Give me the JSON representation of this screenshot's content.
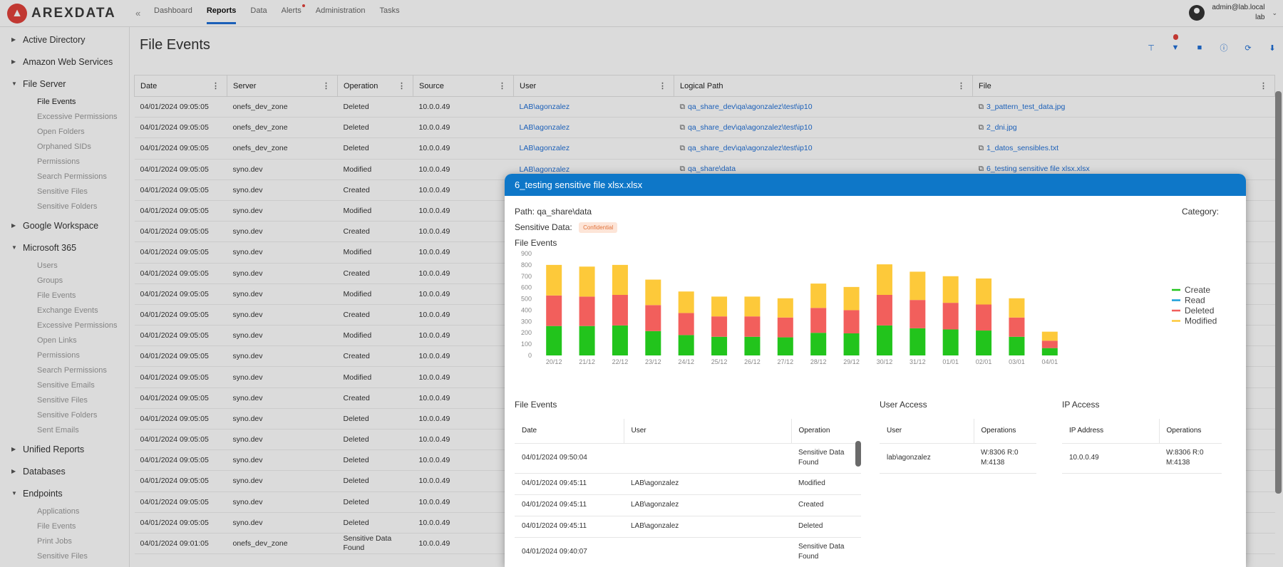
{
  "app": {
    "brand": "AREXDATA",
    "collapse": "«"
  },
  "nav": [
    {
      "label": "Dashboard"
    },
    {
      "label": "Reports"
    },
    {
      "label": "Data"
    },
    {
      "label": "Alerts"
    },
    {
      "label": "Administration"
    },
    {
      "label": "Tasks"
    }
  ],
  "user": {
    "name": "admin@lab.local",
    "domain": "lab"
  },
  "sidebar": {
    "groups": [
      {
        "label": "Active Directory",
        "open": false,
        "items": []
      },
      {
        "label": "Amazon Web Services",
        "open": false,
        "items": []
      },
      {
        "label": "File Server",
        "open": true,
        "items": [
          "File Events",
          "Excessive Permissions",
          "Open Folders",
          "Orphaned SIDs",
          "Permissions",
          "Search Permissions",
          "Sensitive Files",
          "Sensitive Folders"
        ]
      },
      {
        "label": "Google Workspace",
        "open": false,
        "items": []
      },
      {
        "label": "Microsoft 365",
        "open": true,
        "items": [
          "Users",
          "Groups",
          "File Events",
          "Exchange Events",
          "Excessive Permissions",
          "Open Links",
          "Permissions",
          "Search Permissions",
          "Sensitive Emails",
          "Sensitive Files",
          "Sensitive Folders",
          "Sent Emails"
        ]
      },
      {
        "label": "Unified Reports",
        "open": false,
        "items": []
      },
      {
        "label": "Databases",
        "open": false,
        "items": []
      },
      {
        "label": "Endpoints",
        "open": true,
        "items": [
          "Applications",
          "File Events",
          "Print Jobs",
          "Sensitive Files"
        ]
      }
    ]
  },
  "page": {
    "title": "File Events"
  },
  "grid": {
    "columns": [
      "Date",
      "Server",
      "Operation",
      "Source",
      "User",
      "Logical Path",
      "File"
    ],
    "rows": [
      [
        "04/01/2024 09:05:05",
        "onefs_dev_zone",
        "Deleted",
        "10.0.0.49",
        "LAB\\agonzalez",
        "qa_share_dev\\qa\\agonzalez\\test\\ip10",
        "3_pattern_test_data.jpg"
      ],
      [
        "04/01/2024 09:05:05",
        "onefs_dev_zone",
        "Deleted",
        "10.0.0.49",
        "LAB\\agonzalez",
        "qa_share_dev\\qa\\agonzalez\\test\\ip10",
        "2_dni.jpg"
      ],
      [
        "04/01/2024 09:05:05",
        "onefs_dev_zone",
        "Deleted",
        "10.0.0.49",
        "LAB\\agonzalez",
        "qa_share_dev\\qa\\agonzalez\\test\\ip10",
        "1_datos_sensibles.txt"
      ],
      [
        "04/01/2024 09:05:05",
        "syno.dev",
        "Modified",
        "10.0.0.49",
        "LAB\\agonzalez",
        "qa_share\\data",
        "6_testing sensitive file xlsx.xlsx"
      ],
      [
        "04/01/2024 09:05:05",
        "syno.dev",
        "Created",
        "10.0.0.49",
        "",
        "",
        ""
      ],
      [
        "04/01/2024 09:05:05",
        "syno.dev",
        "Modified",
        "10.0.0.49",
        "",
        "",
        ""
      ],
      [
        "04/01/2024 09:05:05",
        "syno.dev",
        "Created",
        "10.0.0.49",
        "",
        "",
        ""
      ],
      [
        "04/01/2024 09:05:05",
        "syno.dev",
        "Modified",
        "10.0.0.49",
        "",
        "",
        ""
      ],
      [
        "04/01/2024 09:05:05",
        "syno.dev",
        "Created",
        "10.0.0.49",
        "",
        "",
        ""
      ],
      [
        "04/01/2024 09:05:05",
        "syno.dev",
        "Modified",
        "10.0.0.49",
        "",
        "",
        ""
      ],
      [
        "04/01/2024 09:05:05",
        "syno.dev",
        "Created",
        "10.0.0.49",
        "",
        "",
        ""
      ],
      [
        "04/01/2024 09:05:05",
        "syno.dev",
        "Modified",
        "10.0.0.49",
        "",
        "",
        ""
      ],
      [
        "04/01/2024 09:05:05",
        "syno.dev",
        "Created",
        "10.0.0.49",
        "",
        "",
        ""
      ],
      [
        "04/01/2024 09:05:05",
        "syno.dev",
        "Modified",
        "10.0.0.49",
        "",
        "",
        ""
      ],
      [
        "04/01/2024 09:05:05",
        "syno.dev",
        "Created",
        "10.0.0.49",
        "",
        "",
        ""
      ],
      [
        "04/01/2024 09:05:05",
        "syno.dev",
        "Deleted",
        "10.0.0.49",
        "",
        "",
        ""
      ],
      [
        "04/01/2024 09:05:05",
        "syno.dev",
        "Deleted",
        "10.0.0.49",
        "",
        "",
        ""
      ],
      [
        "04/01/2024 09:05:05",
        "syno.dev",
        "Deleted",
        "10.0.0.49",
        "",
        "",
        ""
      ],
      [
        "04/01/2024 09:05:05",
        "syno.dev",
        "Deleted",
        "10.0.0.49",
        "",
        "",
        ""
      ],
      [
        "04/01/2024 09:05:05",
        "syno.dev",
        "Deleted",
        "10.0.0.49",
        "",
        "",
        ""
      ],
      [
        "04/01/2024 09:05:05",
        "syno.dev",
        "Deleted",
        "10.0.0.49",
        "",
        "",
        ""
      ],
      [
        "04/01/2024 09:01:05",
        "onefs_dev_zone",
        "Sensitive Data Found",
        "10.0.0.49",
        "",
        "",
        ""
      ]
    ]
  },
  "modal": {
    "title": "6_testing sensitive file xlsx.xlsx",
    "path_label": "Path:",
    "path": "qa_share\\data",
    "sensitive_label": "Sensitive Data:",
    "sensitive_chip": "Confidential",
    "category_label": "Category:",
    "chart_title": "File Events",
    "events_title": "File Events",
    "events_columns": [
      "Date",
      "User",
      "Operation"
    ],
    "events_rows": [
      [
        "04/01/2024 09:50:04",
        "",
        "Sensitive Data Found"
      ],
      [
        "04/01/2024 09:45:11",
        "LAB\\agonzalez",
        "Modified"
      ],
      [
        "04/01/2024 09:45:11",
        "LAB\\agonzalez",
        "Created"
      ],
      [
        "04/01/2024 09:45:11",
        "LAB\\agonzalez",
        "Deleted"
      ],
      [
        "04/01/2024 09:40:07",
        "",
        "Sensitive Data Found"
      ]
    ],
    "user_access_title": "User Access",
    "user_access_columns": [
      "User",
      "Operations"
    ],
    "user_access_rows": [
      [
        "lab\\agonzalez",
        "W:8306 R:0 M:4138"
      ]
    ],
    "ip_access_title": "IP Access",
    "ip_access_columns": [
      "IP Address",
      "Operations"
    ],
    "ip_access_rows": [
      [
        "10.0.0.49",
        "W:8306 R:0 M:4138"
      ]
    ]
  },
  "colors": {
    "accent": "#1f6fd6",
    "header": "#0e77c8",
    "create": "#22c41c",
    "read": "#1a9fd8",
    "deleted": "#f25f5c",
    "modified": "#fdc93a"
  },
  "chart_data": {
    "type": "bar",
    "stacked": true,
    "title": "File Events",
    "categories": [
      "20/12",
      "21/12",
      "22/12",
      "23/12",
      "24/12",
      "25/12",
      "26/12",
      "27/12",
      "28/12",
      "29/12",
      "30/12",
      "31/12",
      "01/01",
      "02/01",
      "03/01",
      "04/01"
    ],
    "series": [
      {
        "name": "Create",
        "values": [
          260,
          260,
          265,
          215,
          180,
          165,
          165,
          160,
          200,
          195,
          265,
          240,
          230,
          220,
          165,
          65
        ]
      },
      {
        "name": "Read",
        "values": [
          0,
          0,
          0,
          0,
          0,
          0,
          0,
          0,
          0,
          0,
          0,
          0,
          0,
          0,
          0,
          0
        ]
      },
      {
        "name": "Deleted",
        "values": [
          270,
          260,
          270,
          230,
          195,
          180,
          180,
          175,
          220,
          205,
          270,
          250,
          235,
          230,
          170,
          65
        ]
      },
      {
        "name": "Modified",
        "values": [
          270,
          265,
          265,
          225,
          190,
          175,
          175,
          170,
          215,
          205,
          270,
          250,
          235,
          230,
          170,
          80
        ]
      }
    ],
    "ylim": [
      0,
      900
    ],
    "yticks": [
      0,
      100,
      200,
      300,
      400,
      500,
      600,
      700,
      800,
      900
    ],
    "legend": "right",
    "grid": false
  }
}
